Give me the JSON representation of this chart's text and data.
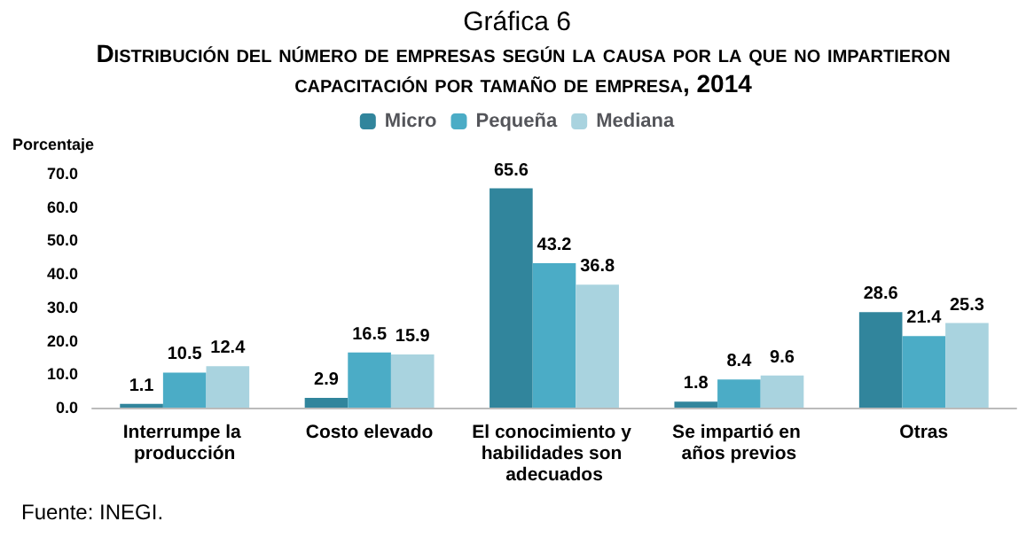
{
  "chart_data": {
    "type": "bar",
    "title": "Gráfica 6",
    "subtitle": "Distribución del número de empresas según la causa por la que no impartieron capacitación por tamaño de empresa, 2014",
    "ylabel": "Porcentaje",
    "annotations": [
      "Fuente: INEGI."
    ],
    "categories": [
      "Interrumpe la producción",
      "Costo elevado",
      "El conocimiento y habilidades son adecuados",
      "Se impartió en años previos",
      "Otras"
    ],
    "series": [
      {
        "name": "Micro",
        "color": "#31859c",
        "values": [
          1.1,
          2.9,
          65.6,
          1.8,
          28.6
        ]
      },
      {
        "name": "Pequeña",
        "color": "#4bacc6",
        "values": [
          10.5,
          16.5,
          43.2,
          8.4,
          21.4
        ]
      },
      {
        "name": "Mediana",
        "color": "#a9d3df",
        "values": [
          12.4,
          15.9,
          36.8,
          9.6,
          25.3
        ]
      }
    ],
    "ylim": [
      0,
      70
    ],
    "yticks": [
      {
        "value": 0,
        "label": "0.0"
      },
      {
        "value": 10,
        "label": "10.0"
      },
      {
        "value": 20,
        "label": "20.0"
      },
      {
        "value": 30,
        "label": "30.0"
      },
      {
        "value": 40,
        "label": "40.0"
      },
      {
        "value": 50,
        "label": "50.0"
      },
      {
        "value": 60,
        "label": "60.0"
      },
      {
        "value": 70,
        "label": "70.0"
      }
    ],
    "grid": false,
    "legend": "top",
    "data_labels": true
  }
}
